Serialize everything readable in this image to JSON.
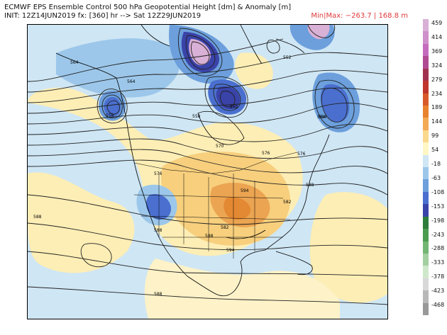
{
  "header": {
    "title_line": "ECMWF EPS Ensemble Control 500 hPa Geopotential Height [dm] & Anomaly [m]",
    "init_line": "INIT: 12Z14JUN2019 fx: [360] hr --> Sat 12Z29JUN2019",
    "minmax": "Min|Max: −263.7 | 168.8 m"
  },
  "legend": {
    "ticks": [
      "459",
      "414",
      "369",
      "324",
      "279",
      "234",
      "189",
      "144",
      "99",
      "54",
      "-18",
      "-63",
      "-108",
      "-153",
      "-198",
      "-243",
      "-288",
      "-333",
      "-378",
      "-423",
      "-468"
    ],
    "colors": [
      "#d9b0d6",
      "#cf8fca",
      "#c46bbd",
      "#b24a92",
      "#a0324e",
      "#c0362c",
      "#d85a2a",
      "#e8822f",
      "#f3a955",
      "#fad98c",
      "#fff7c4",
      "#cfe6f4",
      "#9cc7ea",
      "#6c9fdc",
      "#4a6fcf",
      "#3a43a8",
      "#2c7d3b",
      "#4a9c50",
      "#72b673",
      "#a3cfa1",
      "#cfe8cb",
      "#d8d8d8",
      "#b8b8b8",
      "#999999"
    ]
  },
  "map": {
    "contour_labels": [
      "564",
      "552",
      "564",
      "564",
      "558",
      "558",
      "552",
      "576",
      "570",
      "576",
      "582",
      "588",
      "594",
      "588",
      "588",
      "594",
      "588",
      "576",
      "564",
      "582",
      "588"
    ]
  }
}
